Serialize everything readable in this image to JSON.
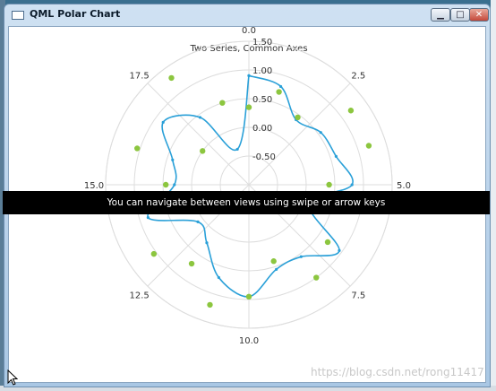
{
  "window": {
    "title": "QML Polar Chart",
    "icon": "window-icon",
    "controls": {
      "minimize": "▁",
      "maximize": "□",
      "close": "✕"
    }
  },
  "banner": {
    "text": "You can navigate between views using swipe or arrow keys"
  },
  "watermark": {
    "text": "https://blog.csdn.net/rong11417"
  },
  "colors": {
    "line": "#2aa0d8",
    "scatter": "#8cc63f",
    "grid": "#dddddd"
  },
  "chart_data": {
    "type": "polar",
    "title": "Two Series, Common Axes",
    "angular_axis": {
      "min": 0,
      "max": 20,
      "tick_labels": [
        "0.0",
        "2.5",
        "5.0",
        "7.5",
        "10.0",
        "12.5",
        "15.0",
        "17.5"
      ]
    },
    "radial_axis": {
      "min": -1.0,
      "max": 1.5,
      "tick_labels": [
        "-0.50",
        "0.00",
        "0.50",
        "1.00",
        "1.50"
      ],
      "ticks": [
        -0.5,
        0.0,
        0.5,
        1.0,
        1.5
      ]
    },
    "grid": true,
    "legend": "none",
    "series": [
      {
        "type": "spline",
        "angles": [
          0,
          1,
          2,
          3,
          4,
          5,
          6,
          7,
          8,
          9,
          10,
          11,
          12,
          13,
          14,
          15,
          16,
          17,
          18,
          19,
          20
        ],
        "values": [
          0.9,
          0.8,
          0.4,
          0.55,
          0.6,
          0.8,
          0.1,
          0.95,
          0.55,
          0.55,
          0.95,
          0.7,
          0.25,
          0.1,
          0.85,
          0.3,
          0.4,
          0.85,
          0.45,
          -0.35,
          0.9
        ]
      },
      {
        "type": "scatter",
        "angles": [
          0,
          1,
          2,
          3,
          4,
          5,
          6,
          7,
          8,
          9,
          10,
          11,
          12,
          13,
          14,
          15,
          16,
          17,
          18,
          19
        ],
        "values": [
          0.35,
          0.7,
          0.45,
          1.2,
          1.2,
          0.4,
          0.5,
          0.7,
          1.0,
          0.4,
          0.95,
          1.2,
          0.7,
          1.05,
          0.4,
          0.45,
          1.05,
          0.0,
          1.3,
          0.5
        ]
      }
    ]
  }
}
